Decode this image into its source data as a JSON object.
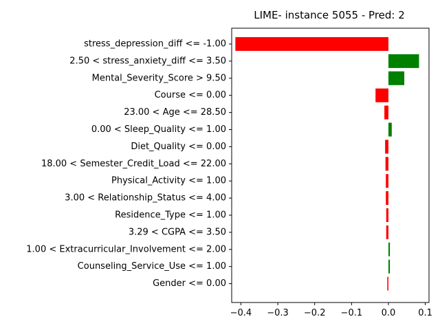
{
  "chart_data": {
    "type": "bar",
    "orientation": "horizontal",
    "title": "LIME- instance 5055 - Pred: 2",
    "xlabel": "",
    "ylabel": "",
    "xlim": [
      -0.425,
      0.11
    ],
    "xticks": [
      -0.4,
      -0.3,
      -0.2,
      -0.1,
      0.0,
      0.1
    ],
    "xtick_labels": [
      "−0.4",
      "−0.3",
      "−0.2",
      "−0.1",
      "0.0",
      "0.1"
    ],
    "grid": false,
    "colors": {
      "positive": "#008000",
      "negative": "#ff0000"
    },
    "categories": [
      "stress_depression_diff <= -1.00",
      "2.50 < stress_anxiety_diff <= 3.50",
      "Mental_Severity_Score > 9.50",
      "Course <= 0.00",
      "23.00 < Age <= 28.50",
      "0.00 < Sleep_Quality <= 1.00",
      "Diet_Quality <= 0.00",
      "18.00 < Semester_Credit_Load <= 22.00",
      "Physical_Activity <= 1.00",
      "3.00 < Relationship_Status <= 4.00",
      "Residence_Type <= 1.00",
      "3.29 < CGPA <= 3.50",
      "1.00 < Extracurricular_Involvement <= 2.00",
      "Counseling_Service_Use <= 1.00",
      "Gender <= 0.00"
    ],
    "values": [
      -0.415,
      0.083,
      0.043,
      -0.035,
      -0.011,
      0.009,
      -0.009,
      -0.008,
      -0.007,
      -0.007,
      -0.006,
      -0.006,
      0.004,
      0.004,
      -0.003
    ]
  }
}
